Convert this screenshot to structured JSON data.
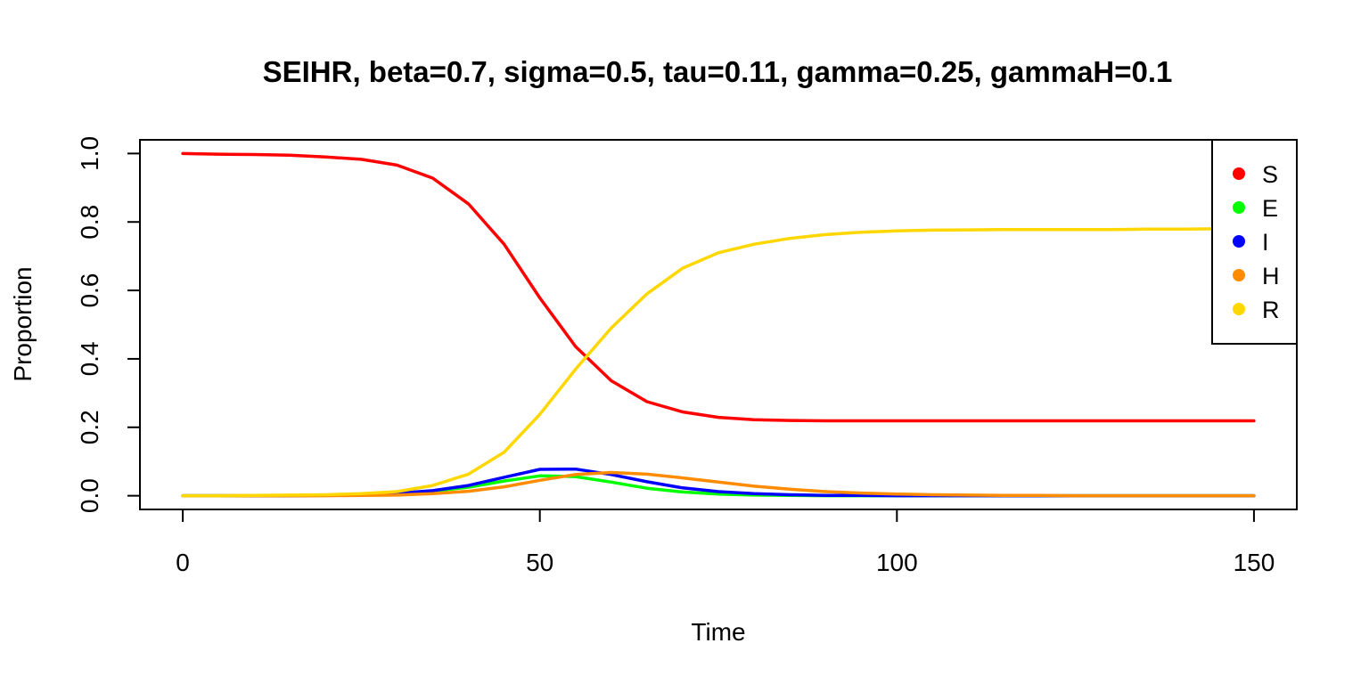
{
  "chart_data": {
    "type": "line",
    "title": "SEIHR, beta=0.7, sigma=0.5, tau=0.11, gamma=0.25, gammaH=0.1",
    "xlabel": "Time",
    "ylabel": "Proportion",
    "xlim": [
      -6,
      156
    ],
    "ylim": [
      -0.04,
      1.04
    ],
    "xticks": [
      0,
      50,
      100,
      150
    ],
    "yticks": [
      0.0,
      0.2,
      0.4,
      0.6,
      0.8,
      1.0
    ],
    "ytick_labels": [
      "0.0",
      "0.2",
      "0.4",
      "0.6",
      "0.8",
      "1.0"
    ],
    "grid": false,
    "legend_position": "top-right",
    "x": [
      0,
      5,
      10,
      15,
      20,
      25,
      30,
      35,
      40,
      45,
      50,
      55,
      60,
      65,
      70,
      75,
      80,
      85,
      90,
      95,
      100,
      105,
      110,
      115,
      120,
      125,
      130,
      135,
      140,
      145,
      150
    ],
    "series": [
      {
        "name": "S",
        "color": "#ff0000",
        "values": [
          1.0,
          0.998,
          0.997,
          0.995,
          0.99,
          0.983,
          0.966,
          0.928,
          0.853,
          0.735,
          0.578,
          0.436,
          0.336,
          0.275,
          0.245,
          0.229,
          0.222,
          0.22,
          0.219,
          0.219,
          0.219,
          0.219,
          0.219,
          0.219,
          0.219,
          0.219,
          0.219,
          0.219,
          0.219,
          0.219,
          0.219
        ]
      },
      {
        "name": "E",
        "color": "#00ff00",
        "values": [
          0.0,
          0.0,
          0.0,
          0.0,
          0.001,
          0.003,
          0.006,
          0.013,
          0.025,
          0.043,
          0.058,
          0.056,
          0.04,
          0.022,
          0.011,
          0.005,
          0.002,
          0.001,
          0.0,
          0.0,
          0.0,
          0.0,
          0.0,
          0.0,
          0.0,
          0.0,
          0.0,
          0.0,
          0.0,
          0.0,
          0.0
        ]
      },
      {
        "name": "I",
        "color": "#0000ff",
        "values": [
          0.0,
          0.0,
          0.0,
          0.0,
          0.001,
          0.003,
          0.007,
          0.015,
          0.03,
          0.054,
          0.077,
          0.078,
          0.062,
          0.041,
          0.023,
          0.012,
          0.006,
          0.003,
          0.001,
          0.001,
          0.0,
          0.0,
          0.0,
          0.0,
          0.0,
          0.0,
          0.0,
          0.0,
          0.0,
          0.0,
          0.0
        ]
      },
      {
        "name": "H",
        "color": "#ff8c00",
        "values": [
          0.0,
          0.0,
          0.0,
          0.0,
          0.0,
          0.001,
          0.002,
          0.006,
          0.013,
          0.026,
          0.045,
          0.062,
          0.068,
          0.063,
          0.052,
          0.04,
          0.028,
          0.019,
          0.012,
          0.008,
          0.005,
          0.003,
          0.002,
          0.001,
          0.001,
          0.0,
          0.0,
          0.0,
          0.0,
          0.0,
          0.0
        ]
      },
      {
        "name": "R",
        "color": "#ffd700",
        "values": [
          0.0,
          0.0,
          0.001,
          0.002,
          0.003,
          0.006,
          0.012,
          0.03,
          0.063,
          0.127,
          0.238,
          0.37,
          0.49,
          0.59,
          0.665,
          0.71,
          0.735,
          0.752,
          0.763,
          0.77,
          0.774,
          0.776,
          0.777,
          0.778,
          0.778,
          0.778,
          0.778,
          0.779,
          0.779,
          0.78,
          0.78
        ]
      }
    ]
  }
}
